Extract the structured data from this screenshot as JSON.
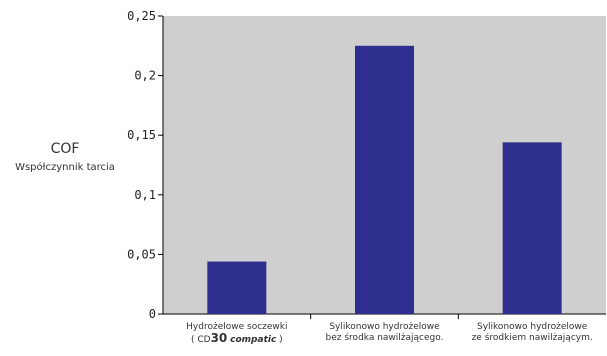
{
  "chart_data": {
    "type": "bar",
    "ylabel": "COF",
    "ylabel_sub": "Współczynnik tarcia",
    "y_ticks": [
      "0",
      "0,05",
      "0,1",
      "0,15",
      "0,2",
      "0,25"
    ],
    "ylim": [
      0,
      0.25
    ],
    "grid": false,
    "plot_background": "#cfcfcf",
    "bar_color": "#2e2e8f",
    "categories": [
      "Hydrożelowe soczewki (CD30 compatic)",
      "Sylikonowo hydrożelowe bez środka nawilżającego.",
      "Sylikonowo hydrożelowe ze środkiem nawilżającym."
    ],
    "category_lines": [
      [
        "Hydrożelowe soczewki",
        "( CD30 compatic )"
      ],
      [
        "Sylikonowo hydrożelowe",
        "bez środka nawilżającego."
      ],
      [
        "Sylikonowo hydrożelowe",
        "ze środkiem nawilżającym."
      ]
    ],
    "values": [
      0.044,
      0.225,
      0.144
    ]
  }
}
